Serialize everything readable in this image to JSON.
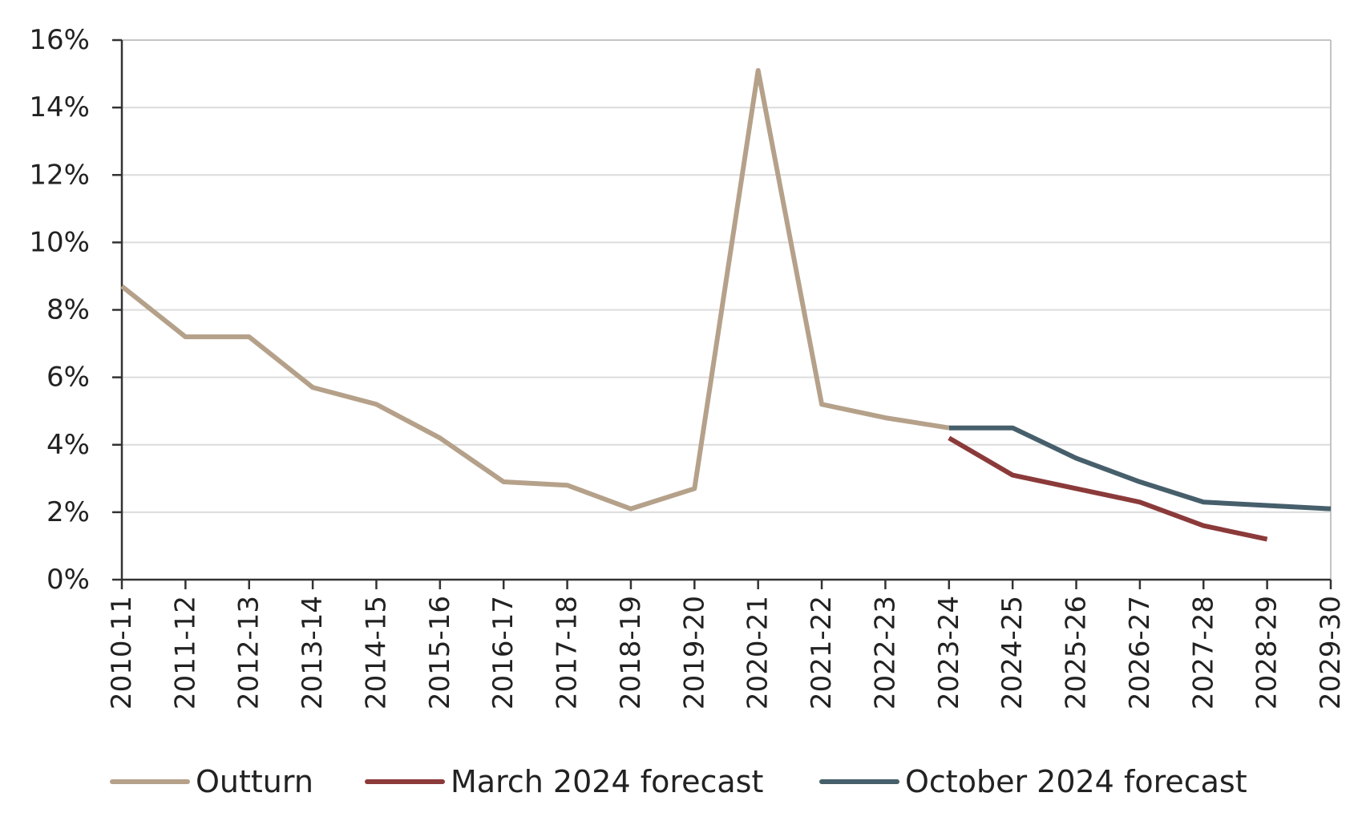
{
  "chart_data": {
    "type": "line",
    "title": "",
    "xlabel": "",
    "ylabel": "",
    "categories": [
      "2010-11",
      "2011-12",
      "2012-13",
      "2013-14",
      "2014-15",
      "2015-16",
      "2016-17",
      "2017-18",
      "2018-19",
      "2019-20",
      "2020-21",
      "2021-22",
      "2022-23",
      "2023-24",
      "2024-25",
      "2025-26",
      "2026-27",
      "2027-28",
      "2028-29",
      "2029-30"
    ],
    "ylim": [
      0,
      16
    ],
    "yticks": [
      0,
      2,
      4,
      6,
      8,
      10,
      12,
      14,
      16
    ],
    "ytick_labels": [
      "0%",
      "2%",
      "4%",
      "6%",
      "8%",
      "10%",
      "12%",
      "14%",
      "16%"
    ],
    "grid": true,
    "legend_position": "bottom",
    "series": [
      {
        "name": "Outturn",
        "color": "#b5a18a",
        "values": [
          8.7,
          7.2,
          7.2,
          5.7,
          5.2,
          4.2,
          2.9,
          2.8,
          2.1,
          2.7,
          15.1,
          5.2,
          4.8,
          4.5,
          null,
          null,
          null,
          null,
          null,
          null
        ]
      },
      {
        "name": "March 2024 forecast",
        "color": "#8b3a3a",
        "values": [
          null,
          null,
          null,
          null,
          null,
          null,
          null,
          null,
          null,
          null,
          null,
          null,
          null,
          4.2,
          3.1,
          2.7,
          2.3,
          1.6,
          1.2,
          null
        ]
      },
      {
        "name": "October 2024 forecast",
        "color": "#465f6b",
        "values": [
          null,
          null,
          null,
          null,
          null,
          null,
          null,
          null,
          null,
          null,
          null,
          null,
          null,
          4.5,
          4.5,
          3.6,
          2.9,
          2.3,
          2.2,
          2.1
        ]
      }
    ]
  }
}
